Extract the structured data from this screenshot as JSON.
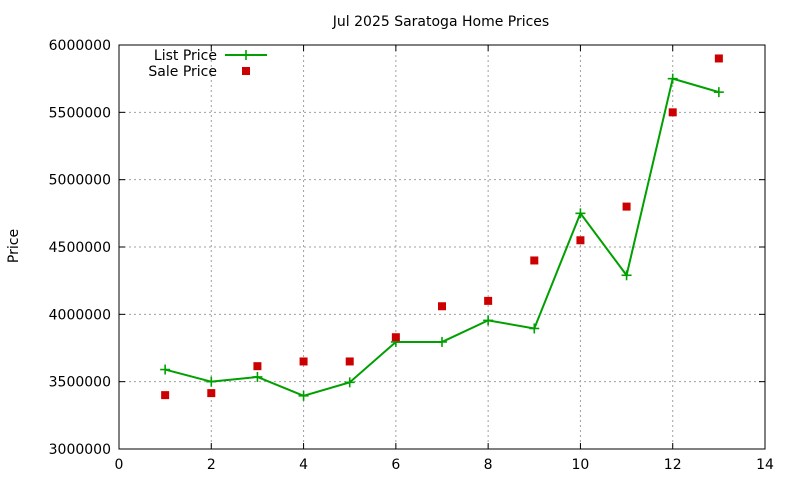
{
  "chart_data": {
    "type": "line",
    "title": "Jul 2025 Saratoga Home Prices",
    "xlabel": "",
    "ylabel": "Price",
    "xlim": [
      0,
      14
    ],
    "ylim": [
      3000000,
      6000000
    ],
    "xticks": [
      0,
      2,
      4,
      6,
      8,
      10,
      12,
      14
    ],
    "yticks": [
      3000000,
      3500000,
      4000000,
      4500000,
      5000000,
      5500000,
      6000000
    ],
    "grid": true,
    "legend_position": "top-left",
    "series": [
      {
        "name": "List Price",
        "style": "linespoints",
        "color": "#00a000",
        "marker": "plus",
        "x": [
          1,
          2,
          3,
          4,
          5,
          6,
          7,
          8,
          9,
          10,
          11,
          12,
          13
        ],
        "y": [
          3590000,
          3500000,
          3535000,
          3395000,
          3495000,
          3795000,
          3795000,
          3955000,
          3895000,
          4750000,
          4290000,
          5750000,
          5650000
        ]
      },
      {
        "name": "Sale Price",
        "style": "points",
        "color": "#cc0000",
        "marker": "square",
        "x": [
          1,
          2,
          3,
          4,
          5,
          6,
          7,
          8,
          9,
          10,
          11,
          12,
          13
        ],
        "y": [
          3400000,
          3415000,
          3615000,
          3650000,
          3650000,
          3830000,
          4060000,
          4100000,
          4400000,
          4550000,
          4800000,
          5500000,
          5900000
        ]
      }
    ]
  }
}
